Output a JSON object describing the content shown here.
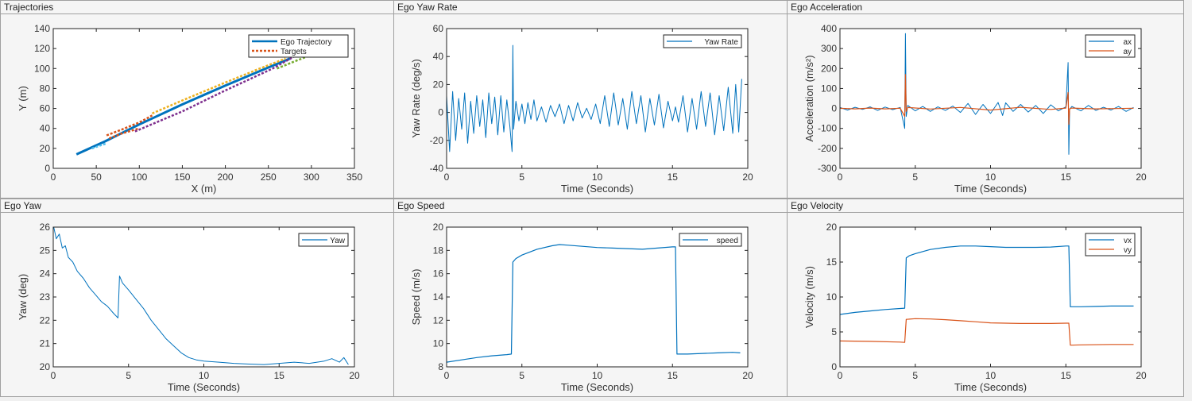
{
  "panels": [
    {
      "title": "Trajectories"
    },
    {
      "title": "Ego Yaw Rate"
    },
    {
      "title": "Ego Acceleration"
    },
    {
      "title": "Ego Yaw"
    },
    {
      "title": "Ego Speed"
    },
    {
      "title": "Ego Velocity"
    }
  ],
  "chart_data": [
    {
      "type": "line",
      "title": "Trajectories",
      "xlabel": "X (m)",
      "ylabel": "Y (m)",
      "xlim": [
        0,
        350
      ],
      "ylim": [
        0,
        140
      ],
      "xticks": [
        0,
        50,
        100,
        150,
        200,
        250,
        300,
        350
      ],
      "yticks": [
        0,
        20,
        40,
        60,
        80,
        100,
        120,
        140
      ],
      "legend": "top-right",
      "series": [
        {
          "name": "Ego Trajectory",
          "color": "#0072BD",
          "dash": false,
          "width": 3,
          "x": [
            27,
            60,
            100,
            150,
            200,
            250,
            275
          ],
          "y": [
            14,
            27,
            44,
            64,
            83,
            101,
            110
          ],
          "legend": true
        },
        {
          "name": "Targets",
          "color": "#D95319",
          "dash": true,
          "width": 2.5,
          "x": [
            62,
            80,
            100,
            115
          ],
          "y": [
            33,
            39,
            46,
            53
          ],
          "legend": true
        },
        {
          "color": "#D95319",
          "dash": true,
          "width": 2.5,
          "x": [
            65,
            80,
            100
          ],
          "y": [
            30,
            35,
            40
          ]
        },
        {
          "color": "#EDB120",
          "dash": true,
          "width": 2.5,
          "x": [
            115,
            150,
            200,
            240,
            270
          ],
          "y": [
            55,
            68,
            86,
            100,
            110
          ]
        },
        {
          "color": "#7E2F8E",
          "dash": true,
          "width": 2.5,
          "x": [
            95,
            150,
            200,
            255,
            280
          ],
          "y": [
            37,
            57,
            78,
            100,
            112
          ]
        },
        {
          "color": "#77AC30",
          "dash": true,
          "width": 2.5,
          "x": [
            260,
            280,
            295
          ],
          "y": [
            100,
            107,
            112
          ]
        },
        {
          "color": "#4DBEEE",
          "dash": true,
          "width": 2.5,
          "x": [
            45,
            55,
            62
          ],
          "y": [
            20,
            23,
            25
          ]
        }
      ]
    },
    {
      "type": "line",
      "title": "Ego Yaw Rate",
      "xlabel": "Time (Seconds)",
      "ylabel": "Yaw Rate (deg/s)",
      "xlim": [
        0,
        20
      ],
      "ylim": [
        -40,
        60
      ],
      "xticks": [
        0,
        5,
        10,
        15,
        20
      ],
      "yticks": [
        -40,
        -20,
        0,
        20,
        40,
        60
      ],
      "legend": "top-right",
      "series": [
        {
          "name": "Yaw Rate",
          "color": "#0072BD",
          "width": 1,
          "legend": true,
          "x": [
            0,
            0.2,
            0.4,
            0.6,
            0.8,
            1,
            1.2,
            1.4,
            1.6,
            1.8,
            2,
            2.2,
            2.4,
            2.6,
            2.8,
            3,
            3.2,
            3.4,
            3.6,
            3.8,
            4,
            4.2,
            4.35,
            4.4,
            4.45,
            4.6,
            4.8,
            5,
            5.2,
            5.4,
            5.6,
            5.8,
            6,
            6.3,
            6.6,
            6.9,
            7.2,
            7.5,
            7.8,
            8.1,
            8.4,
            8.7,
            9,
            9.3,
            9.6,
            9.9,
            10.2,
            10.5,
            10.8,
            11.1,
            11.4,
            11.7,
            12,
            12.3,
            12.6,
            12.9,
            13.2,
            13.5,
            13.8,
            14.1,
            14.4,
            14.7,
            15,
            15.2,
            15.4,
            15.7,
            16,
            16.3,
            16.6,
            16.9,
            17.2,
            17.5,
            17.8,
            18.1,
            18.4,
            18.7,
            19,
            19.2,
            19.4,
            19.6
          ],
          "y": [
            12,
            -28,
            15,
            -20,
            10,
            -12,
            14,
            -22,
            8,
            -15,
            12,
            -10,
            9,
            -18,
            14,
            -8,
            11,
            -16,
            12,
            -14,
            9,
            -10,
            -28,
            48,
            -12,
            8,
            -6,
            6,
            -8,
            7,
            -5,
            9,
            -6,
            4,
            -7,
            5,
            -3,
            6,
            -8,
            5,
            -6,
            7,
            -4,
            3,
            -5,
            6,
            -8,
            12,
            -10,
            14,
            -9,
            10,
            -12,
            15,
            -8,
            12,
            -14,
            10,
            -9,
            13,
            -11,
            8,
            -6,
            4,
            -7,
            12,
            -14,
            10,
            -12,
            15,
            -10,
            14,
            -16,
            12,
            -13,
            18,
            -15,
            20,
            -14,
            24
          ]
        }
      ]
    },
    {
      "type": "line",
      "title": "Ego Acceleration",
      "xlabel": "Time (Seconds)",
      "ylabel": "Acceleration  (m/s²)",
      "xlim": [
        0,
        20
      ],
      "ylim": [
        -300,
        400
      ],
      "xticks": [
        0,
        5,
        10,
        15,
        20
      ],
      "yticks": [
        -300,
        -200,
        -100,
        0,
        100,
        200,
        300,
        400
      ],
      "legend": "top-right",
      "series": [
        {
          "name": "ax",
          "color": "#0072BD",
          "width": 1,
          "legend": true,
          "x": [
            0,
            0.5,
            1,
            1.5,
            2,
            2.5,
            3,
            3.5,
            4,
            4.3,
            4.35,
            4.4,
            4.5,
            5,
            5.5,
            6,
            6.5,
            7,
            7.5,
            8,
            8.5,
            9,
            9.5,
            10,
            10.5,
            10.8,
            11,
            11.5,
            12,
            12.5,
            13,
            13.5,
            14,
            14.5,
            15,
            15.15,
            15.2,
            15.25,
            15.4,
            16,
            16.5,
            17,
            17.5,
            18,
            18.5,
            19,
            19.5
          ],
          "y": [
            5,
            -8,
            6,
            -5,
            8,
            -10,
            7,
            -6,
            5,
            -100,
            375,
            -40,
            15,
            -12,
            10,
            -15,
            8,
            -10,
            12,
            -20,
            25,
            -30,
            20,
            -25,
            30,
            -35,
            28,
            -15,
            20,
            -18,
            15,
            -25,
            18,
            -12,
            8,
            230,
            -230,
            -5,
            10,
            -12,
            15,
            -10,
            6,
            -8,
            10,
            -15,
            5
          ]
        },
        {
          "name": "ay",
          "color": "#D95319",
          "width": 1.2,
          "legend": true,
          "x": [
            0,
            1,
            2,
            3,
            4,
            4.3,
            4.35,
            4.4,
            4.5,
            6,
            8,
            10,
            12,
            14,
            15,
            15.15,
            15.2,
            15.25,
            15.4,
            17,
            19.5
          ],
          "y": [
            1,
            -2,
            2,
            -2,
            1,
            -40,
            170,
            -15,
            5,
            -3,
            5,
            -8,
            6,
            -5,
            2,
            80,
            -80,
            -2,
            2,
            -2,
            1
          ]
        }
      ]
    },
    {
      "type": "line",
      "title": "Ego Yaw",
      "xlabel": "Time (Seconds)",
      "ylabel": "Yaw (deg)",
      "xlim": [
        0,
        20
      ],
      "ylim": [
        20,
        26
      ],
      "xticks": [
        0,
        5,
        10,
        15,
        20
      ],
      "yticks": [
        20,
        21,
        22,
        23,
        24,
        25,
        26
      ],
      "legend": "top-right",
      "series": [
        {
          "name": "Yaw",
          "color": "#0072BD",
          "width": 1,
          "legend": true,
          "x": [
            0,
            0.2,
            0.4,
            0.6,
            0.8,
            1,
            1.3,
            1.6,
            2,
            2.4,
            2.8,
            3.2,
            3.6,
            4,
            4.3,
            4.4,
            4.6,
            5,
            5.5,
            6,
            6.5,
            7,
            7.5,
            8,
            8.5,
            9,
            9.5,
            10,
            11,
            12,
            13,
            14,
            15,
            16,
            17,
            18,
            18.5,
            19,
            19.3,
            19.6
          ],
          "y": [
            26.1,
            25.5,
            25.7,
            25.1,
            25.2,
            24.7,
            24.5,
            24.1,
            23.8,
            23.4,
            23.1,
            22.8,
            22.6,
            22.3,
            22.1,
            23.9,
            23.6,
            23.3,
            22.9,
            22.5,
            22.0,
            21.6,
            21.2,
            20.9,
            20.6,
            20.4,
            20.3,
            20.25,
            20.2,
            20.15,
            20.12,
            20.1,
            20.15,
            20.2,
            20.15,
            20.25,
            20.35,
            20.2,
            20.4,
            20.1
          ]
        }
      ]
    },
    {
      "type": "line",
      "title": "Ego Speed",
      "xlabel": "Time (Seconds)",
      "ylabel": "Speed (m/s)",
      "xlim": [
        0,
        20
      ],
      "ylim": [
        8,
        20
      ],
      "xticks": [
        0,
        5,
        10,
        15,
        20
      ],
      "yticks": [
        8,
        10,
        12,
        14,
        16,
        18,
        20
      ],
      "legend": "top-right",
      "series": [
        {
          "name": "speed",
          "color": "#0072BD",
          "width": 1.2,
          "legend": true,
          "x": [
            0,
            1,
            2,
            3,
            4,
            4.3,
            4.4,
            4.6,
            5,
            6,
            7,
            7.5,
            8,
            9,
            10,
            11,
            12,
            13,
            14,
            15,
            15.2,
            15.3,
            16,
            17,
            18,
            19,
            19.5
          ],
          "y": [
            8.4,
            8.6,
            8.8,
            8.95,
            9.05,
            9.1,
            17.0,
            17.3,
            17.6,
            18.1,
            18.4,
            18.5,
            18.45,
            18.35,
            18.25,
            18.2,
            18.15,
            18.1,
            18.2,
            18.3,
            18.3,
            9.1,
            9.1,
            9.15,
            9.2,
            9.25,
            9.2
          ]
        }
      ]
    },
    {
      "type": "line",
      "title": "Ego Velocity",
      "xlabel": "Time (Seconds)",
      "ylabel": "Velocity (m/s)",
      "xlim": [
        0,
        20
      ],
      "ylim": [
        0,
        20
      ],
      "xticks": [
        0,
        5,
        10,
        15,
        20
      ],
      "yticks": [
        0,
        5,
        10,
        15,
        20
      ],
      "legend": "top-right",
      "series": [
        {
          "name": "vx",
          "color": "#0072BD",
          "width": 1.2,
          "legend": true,
          "x": [
            0,
            1,
            2,
            3,
            4,
            4.3,
            4.4,
            4.6,
            5,
            6,
            7,
            8,
            9,
            10,
            11,
            12,
            13,
            14,
            15,
            15.2,
            15.3,
            16,
            17,
            18,
            19,
            19.5
          ],
          "y": [
            7.5,
            7.8,
            8.0,
            8.2,
            8.35,
            8.4,
            15.6,
            15.9,
            16.2,
            16.8,
            17.1,
            17.3,
            17.3,
            17.2,
            17.1,
            17.1,
            17.1,
            17.15,
            17.3,
            17.3,
            8.6,
            8.6,
            8.65,
            8.7,
            8.7,
            8.7
          ]
        },
        {
          "name": "vy",
          "color": "#D95319",
          "width": 1.2,
          "legend": true,
          "x": [
            0,
            2,
            4,
            4.3,
            4.4,
            5,
            6,
            7,
            8,
            9,
            10,
            11,
            12,
            13,
            14,
            15,
            15.2,
            15.3,
            16,
            18,
            19.5
          ],
          "y": [
            3.7,
            3.65,
            3.55,
            3.5,
            6.8,
            6.9,
            6.85,
            6.75,
            6.6,
            6.45,
            6.3,
            6.25,
            6.2,
            6.2,
            6.2,
            6.25,
            6.25,
            3.1,
            3.15,
            3.2,
            3.2
          ]
        }
      ]
    }
  ]
}
